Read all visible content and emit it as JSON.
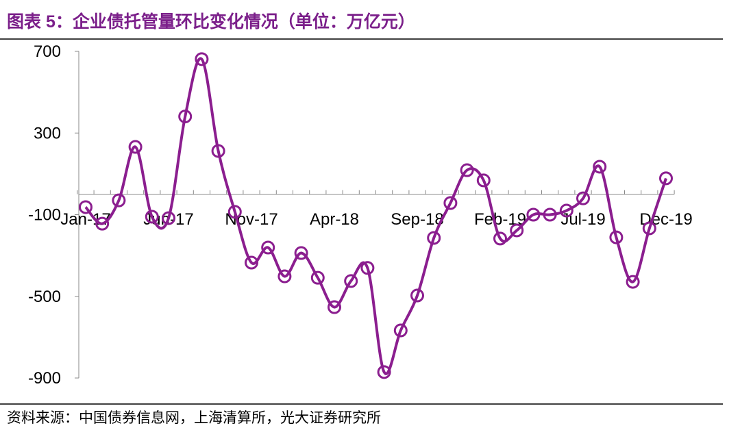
{
  "chart_data": {
    "type": "line",
    "title": "图表 5：企业债托管量环比变化情况（单位：万亿元）",
    "source": "资料来源：中国债券信息网，上海清算所，光大证券研究所",
    "categories": [
      "Jan-17",
      null,
      null,
      null,
      null,
      "Jun-17",
      null,
      null,
      null,
      null,
      "Nov-17",
      null,
      null,
      null,
      null,
      "Apr-18",
      null,
      null,
      null,
      null,
      "Sep-18",
      null,
      null,
      null,
      null,
      "Feb-19",
      null,
      null,
      null,
      null,
      "Jul-19",
      null,
      null,
      null,
      null,
      "Dec-19"
    ],
    "series": [
      {
        "name": "企业债托管量环比变化",
        "color": "#8b1e8f",
        "values": [
          -63,
          -144,
          -30,
          232,
          -110,
          -117,
          381,
          662,
          212,
          -86,
          -335,
          -261,
          -402,
          -288,
          -409,
          -553,
          -425,
          -361,
          -871,
          -667,
          -496,
          -214,
          -43,
          118,
          68,
          -217,
          -177,
          -100,
          -100,
          -80,
          -20,
          135,
          -211,
          -429,
          -167,
          78
        ]
      }
    ],
    "ylim": [
      -900,
      700
    ],
    "yticks": [
      -900,
      -500,
      -100,
      300,
      700
    ]
  }
}
